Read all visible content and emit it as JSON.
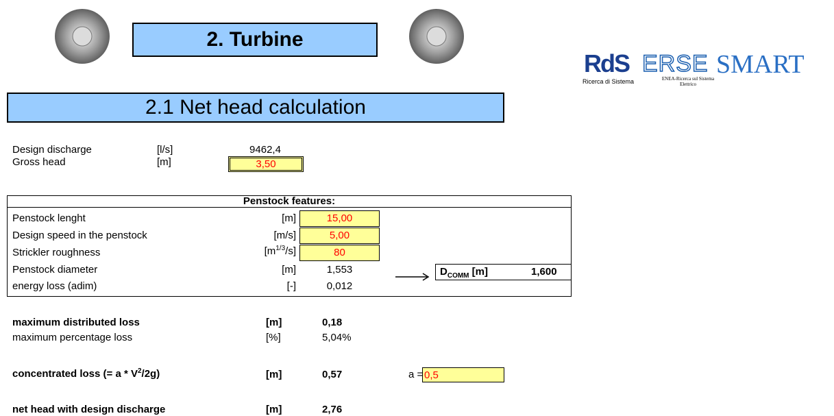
{
  "header": {
    "title": "2. Turbine",
    "logos": {
      "rds": "RdS",
      "rds_caption": "Ricerca di Sistema",
      "erse": "ERSE",
      "erse_caption": "ENEA-Ricerca sul Sistema Elettrico",
      "smart": "SMART"
    }
  },
  "section": {
    "title": "2.1 Net head calculation"
  },
  "inputs": [
    {
      "label": "Design discharge",
      "unit": "[l/s]",
      "value": "9462,4"
    },
    {
      "label": "Gross head",
      "unit": "[m]",
      "value": "3,50"
    }
  ],
  "penstock": {
    "title": "Penstock features:",
    "rows": [
      {
        "label": "Penstock lenght",
        "unit": "[m]",
        "value": "15,00"
      },
      {
        "label": "Design speed in the penstock",
        "unit": "[m/s]",
        "value": "5,00"
      },
      {
        "label": "Strickler roughness",
        "unit": {
          "pre": "[m",
          "sup": "1/3",
          "post": "/s]"
        },
        "value": "80"
      },
      {
        "label": "Penstock diameter",
        "unit": "[m]",
        "value": "1,553"
      },
      {
        "label": "energy loss (adim)",
        "unit": "[-]",
        "value": "0,012"
      }
    ],
    "dcomm": {
      "symbol": "D",
      "subscript": "COMM",
      "unit": " [m]",
      "value": "1,600"
    }
  },
  "losses": {
    "distributed": {
      "label": "maximum distributed loss",
      "unit": "[m]",
      "value": "0,18"
    },
    "percentage": {
      "label": "maximum percentage loss",
      "unit": "[%]",
      "value": "5,04%"
    },
    "concentrated": {
      "label": {
        "pre": "concentrated loss (= a * V",
        "sup": "2",
        "post": "/2g)"
      },
      "unit": "[m]",
      "value": "0,57",
      "coef_label": "a =",
      "coef_value": "0,5"
    },
    "net_head": {
      "label": "net head with design discharge",
      "unit": "[m]",
      "value": "2,76"
    }
  }
}
